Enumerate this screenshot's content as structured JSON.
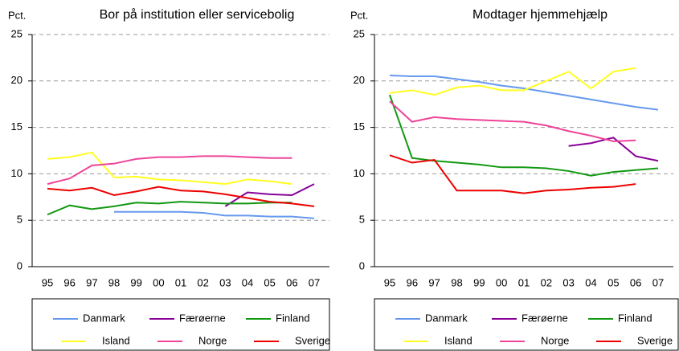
{
  "chart_data": [
    {
      "type": "line",
      "title": "Bor på institution eller servicebolig",
      "ylabel": "Pct.",
      "categories": [
        "95",
        "96",
        "97",
        "98",
        "99",
        "00",
        "01",
        "02",
        "03",
        "04",
        "05",
        "06",
        "07"
      ],
      "ylim": [
        0,
        25
      ],
      "yticks": [
        0,
        5,
        10,
        15,
        20,
        25
      ],
      "grid": true,
      "series": [
        {
          "name": "Danmark",
          "color": "#6699ee",
          "values": [
            null,
            null,
            null,
            5.9,
            5.9,
            5.9,
            5.9,
            5.8,
            5.5,
            5.5,
            5.4,
            5.4,
            5.2
          ]
        },
        {
          "name": "Færøerne",
          "color": "#880099",
          "values": [
            null,
            null,
            null,
            null,
            null,
            null,
            null,
            null,
            6.5,
            8.0,
            7.8,
            7.7,
            8.9
          ]
        },
        {
          "name": "Finland",
          "color": "#119911",
          "values": [
            5.6,
            6.6,
            6.2,
            6.5,
            6.9,
            6.8,
            7.0,
            6.9,
            6.8,
            6.8,
            6.9,
            6.9,
            null
          ]
        },
        {
          "name": "Island",
          "color": "#ffff22",
          "values": [
            11.6,
            11.8,
            12.3,
            9.6,
            9.7,
            9.4,
            9.3,
            9.1,
            8.9,
            9.4,
            9.2,
            8.9,
            null
          ]
        },
        {
          "name": "Norge",
          "color": "#ee4499",
          "values": [
            8.9,
            9.5,
            10.9,
            11.1,
            11.6,
            11.8,
            11.8,
            11.9,
            11.9,
            11.8,
            11.7,
            11.7,
            null
          ]
        },
        {
          "name": "Sverige",
          "color": "#ee0000",
          "values": [
            8.4,
            8.2,
            8.5,
            7.7,
            8.1,
            8.6,
            8.2,
            8.1,
            7.8,
            7.4,
            7.0,
            6.8,
            6.5
          ]
        }
      ]
    },
    {
      "type": "line",
      "title": "Modtager hjemmehjælp",
      "ylabel": "Pct.",
      "categories": [
        "95",
        "96",
        "97",
        "98",
        "99",
        "00",
        "01",
        "02",
        "03",
        "04",
        "05",
        "06",
        "07"
      ],
      "ylim": [
        0,
        25
      ],
      "yticks": [
        0,
        5,
        10,
        15,
        20,
        25
      ],
      "grid": true,
      "series": [
        {
          "name": "Danmark",
          "color": "#6699ee",
          "values": [
            20.6,
            20.5,
            20.5,
            20.2,
            19.9,
            19.5,
            19.2,
            18.8,
            18.4,
            18.0,
            17.6,
            17.2,
            16.9
          ]
        },
        {
          "name": "Færøerne",
          "color": "#880099",
          "values": [
            null,
            null,
            null,
            null,
            null,
            null,
            null,
            null,
            13.0,
            13.3,
            13.9,
            11.9,
            11.4
          ]
        },
        {
          "name": "Finland",
          "color": "#119911",
          "values": [
            18.5,
            11.7,
            11.4,
            11.2,
            11.0,
            10.7,
            10.7,
            10.6,
            10.3,
            9.8,
            10.2,
            10.4,
            10.6
          ]
        },
        {
          "name": "Island",
          "color": "#ffff22",
          "values": [
            18.7,
            19.0,
            18.5,
            19.3,
            19.5,
            19.0,
            19.0,
            20.0,
            21.0,
            19.2,
            21.0,
            21.4,
            null
          ]
        },
        {
          "name": "Norge",
          "color": "#ee4499",
          "values": [
            17.8,
            15.6,
            16.1,
            15.9,
            15.8,
            15.7,
            15.6,
            15.2,
            14.6,
            14.1,
            13.5,
            13.6,
            null
          ]
        },
        {
          "name": "Sverige",
          "color": "#ee0000",
          "values": [
            12.0,
            11.2,
            11.5,
            8.2,
            8.2,
            8.2,
            7.9,
            8.2,
            8.3,
            8.5,
            8.6,
            8.9,
            null
          ]
        }
      ]
    }
  ]
}
